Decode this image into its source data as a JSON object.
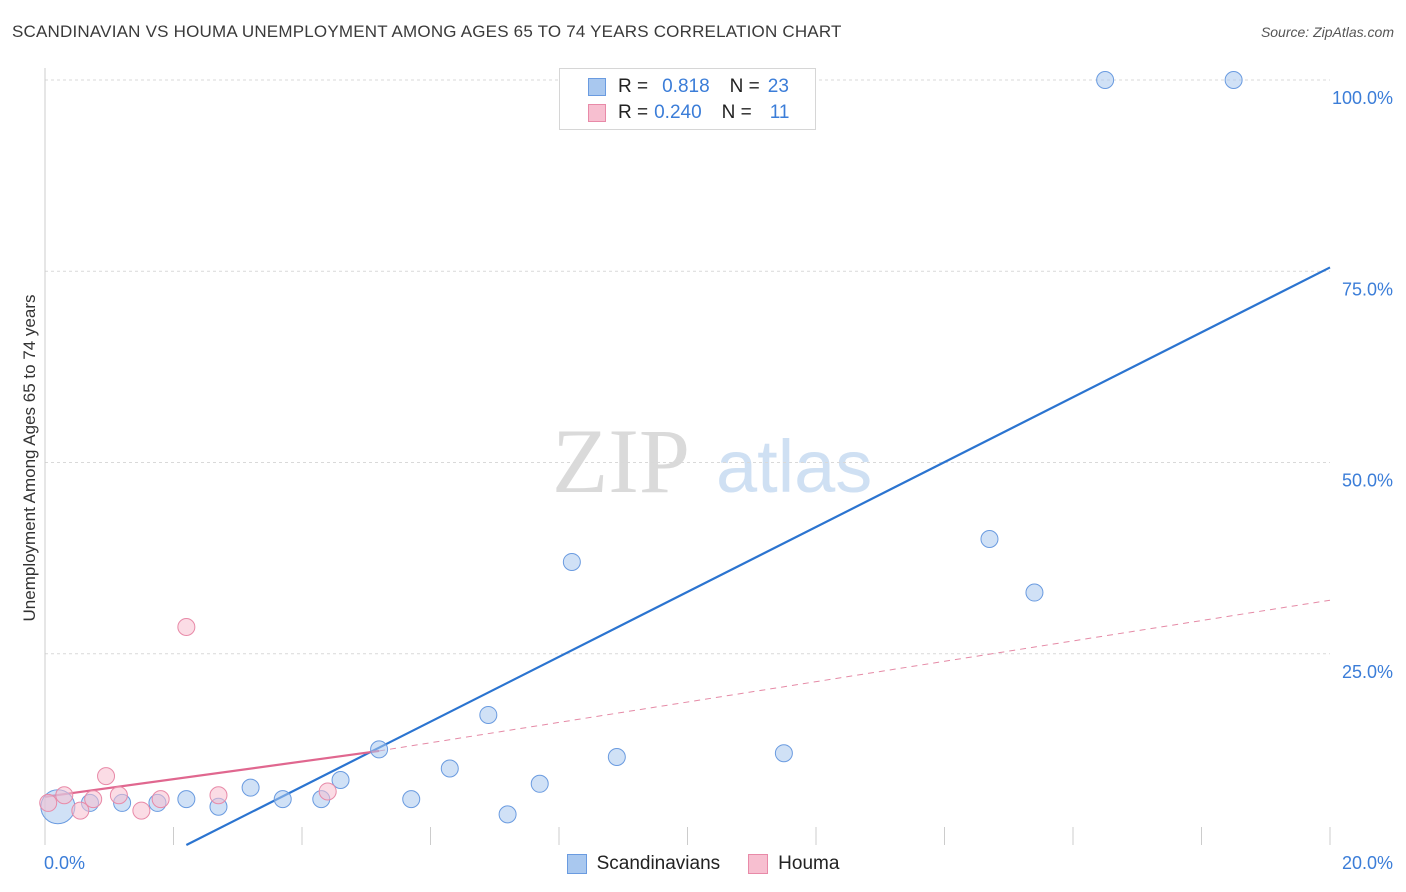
{
  "title": "SCANDINAVIAN VS HOUMA UNEMPLOYMENT AMONG AGES 65 TO 74 YEARS CORRELATION CHART",
  "source": "Source: ZipAtlas.com",
  "watermark": {
    "zip": "ZIP",
    "atlas": "atlas"
  },
  "legend": {
    "rows": [
      {
        "r_label": "R =",
        "r_value": "0.818",
        "n_label": "N =",
        "n_value": "23",
        "color": "#a9c8ef",
        "stroke": "#6a9be0"
      },
      {
        "r_label": "R =",
        "r_value": "0.240",
        "n_label": "N =",
        "n_value": "11",
        "color": "#f7bfd0",
        "stroke": "#e88aa8"
      }
    ]
  },
  "bottom_legend": [
    {
      "label": "Scandinavians",
      "color": "#a9c8ef",
      "stroke": "#6a9be0"
    },
    {
      "label": "Houma",
      "color": "#f7bfd0",
      "stroke": "#e88aa8"
    }
  ],
  "chart_data": {
    "type": "scatter",
    "title": "SCANDINAVIAN VS HOUMA UNEMPLOYMENT AMONG AGES 65 TO 74 YEARS CORRELATION CHART",
    "xlabel": "",
    "ylabel": "Unemployment Among Ages 65 to 74 years",
    "xlim": [
      0,
      20
    ],
    "ylim": [
      0,
      100
    ],
    "x_tick_labels": [
      {
        "value": 0,
        "label": "0.0%"
      },
      {
        "value": 20,
        "label": "20.0%"
      }
    ],
    "y_tick_labels": [
      {
        "value": 25,
        "label": "25.0%"
      },
      {
        "value": 50,
        "label": "50.0%"
      },
      {
        "value": 75,
        "label": "75.0%"
      },
      {
        "value": 100,
        "label": "100.0%"
      }
    ],
    "grid": true,
    "legend_position": "top-center",
    "series": [
      {
        "name": "Scandinavians",
        "color": "#a9c8ef",
        "stroke": "#6a9be0",
        "points": [
          {
            "x": 0.2,
            "y": 5.0,
            "big": true
          },
          {
            "x": 0.7,
            "y": 5.5
          },
          {
            "x": 1.2,
            "y": 5.5
          },
          {
            "x": 1.75,
            "y": 5.5
          },
          {
            "x": 2.2,
            "y": 6.0
          },
          {
            "x": 2.7,
            "y": 5.0
          },
          {
            "x": 3.2,
            "y": 7.5
          },
          {
            "x": 3.7,
            "y": 6.0
          },
          {
            "x": 4.3,
            "y": 6.0
          },
          {
            "x": 4.6,
            "y": 8.5
          },
          {
            "x": 5.2,
            "y": 12.5
          },
          {
            "x": 5.7,
            "y": 6.0
          },
          {
            "x": 6.3,
            "y": 10.0
          },
          {
            "x": 6.9,
            "y": 17.0
          },
          {
            "x": 7.2,
            "y": 4.0
          },
          {
            "x": 7.7,
            "y": 8.0
          },
          {
            "x": 8.2,
            "y": 37.0
          },
          {
            "x": 8.9,
            "y": 11.5
          },
          {
            "x": 11.5,
            "y": 12.0
          },
          {
            "x": 14.7,
            "y": 40.0
          },
          {
            "x": 15.4,
            "y": 33.0
          },
          {
            "x": 16.5,
            "y": 100.0
          },
          {
            "x": 18.5,
            "y": 100.0
          }
        ],
        "trend": {
          "x1": 2.2,
          "y1": 0.0,
          "x2": 20.0,
          "y2": 75.5
        }
      },
      {
        "name": "Houma",
        "color": "#f7bfd0",
        "stroke": "#e88aa8",
        "points": [
          {
            "x": 0.05,
            "y": 5.5
          },
          {
            "x": 0.3,
            "y": 6.5
          },
          {
            "x": 0.55,
            "y": 4.5
          },
          {
            "x": 0.75,
            "y": 6.0
          },
          {
            "x": 0.95,
            "y": 9.0
          },
          {
            "x": 1.15,
            "y": 6.5
          },
          {
            "x": 1.5,
            "y": 4.5
          },
          {
            "x": 1.8,
            "y": 6.0
          },
          {
            "x": 2.2,
            "y": 28.5
          },
          {
            "x": 2.7,
            "y": 6.5
          },
          {
            "x": 4.4,
            "y": 7.0
          }
        ],
        "trend": {
          "x1": 0.0,
          "y1": 6.3,
          "x2": 5.2,
          "y2": 12.3
        },
        "trend_extension": {
          "x1": 5.2,
          "y1": 12.3,
          "x2": 20.0,
          "y2": 32.0
        }
      }
    ]
  }
}
